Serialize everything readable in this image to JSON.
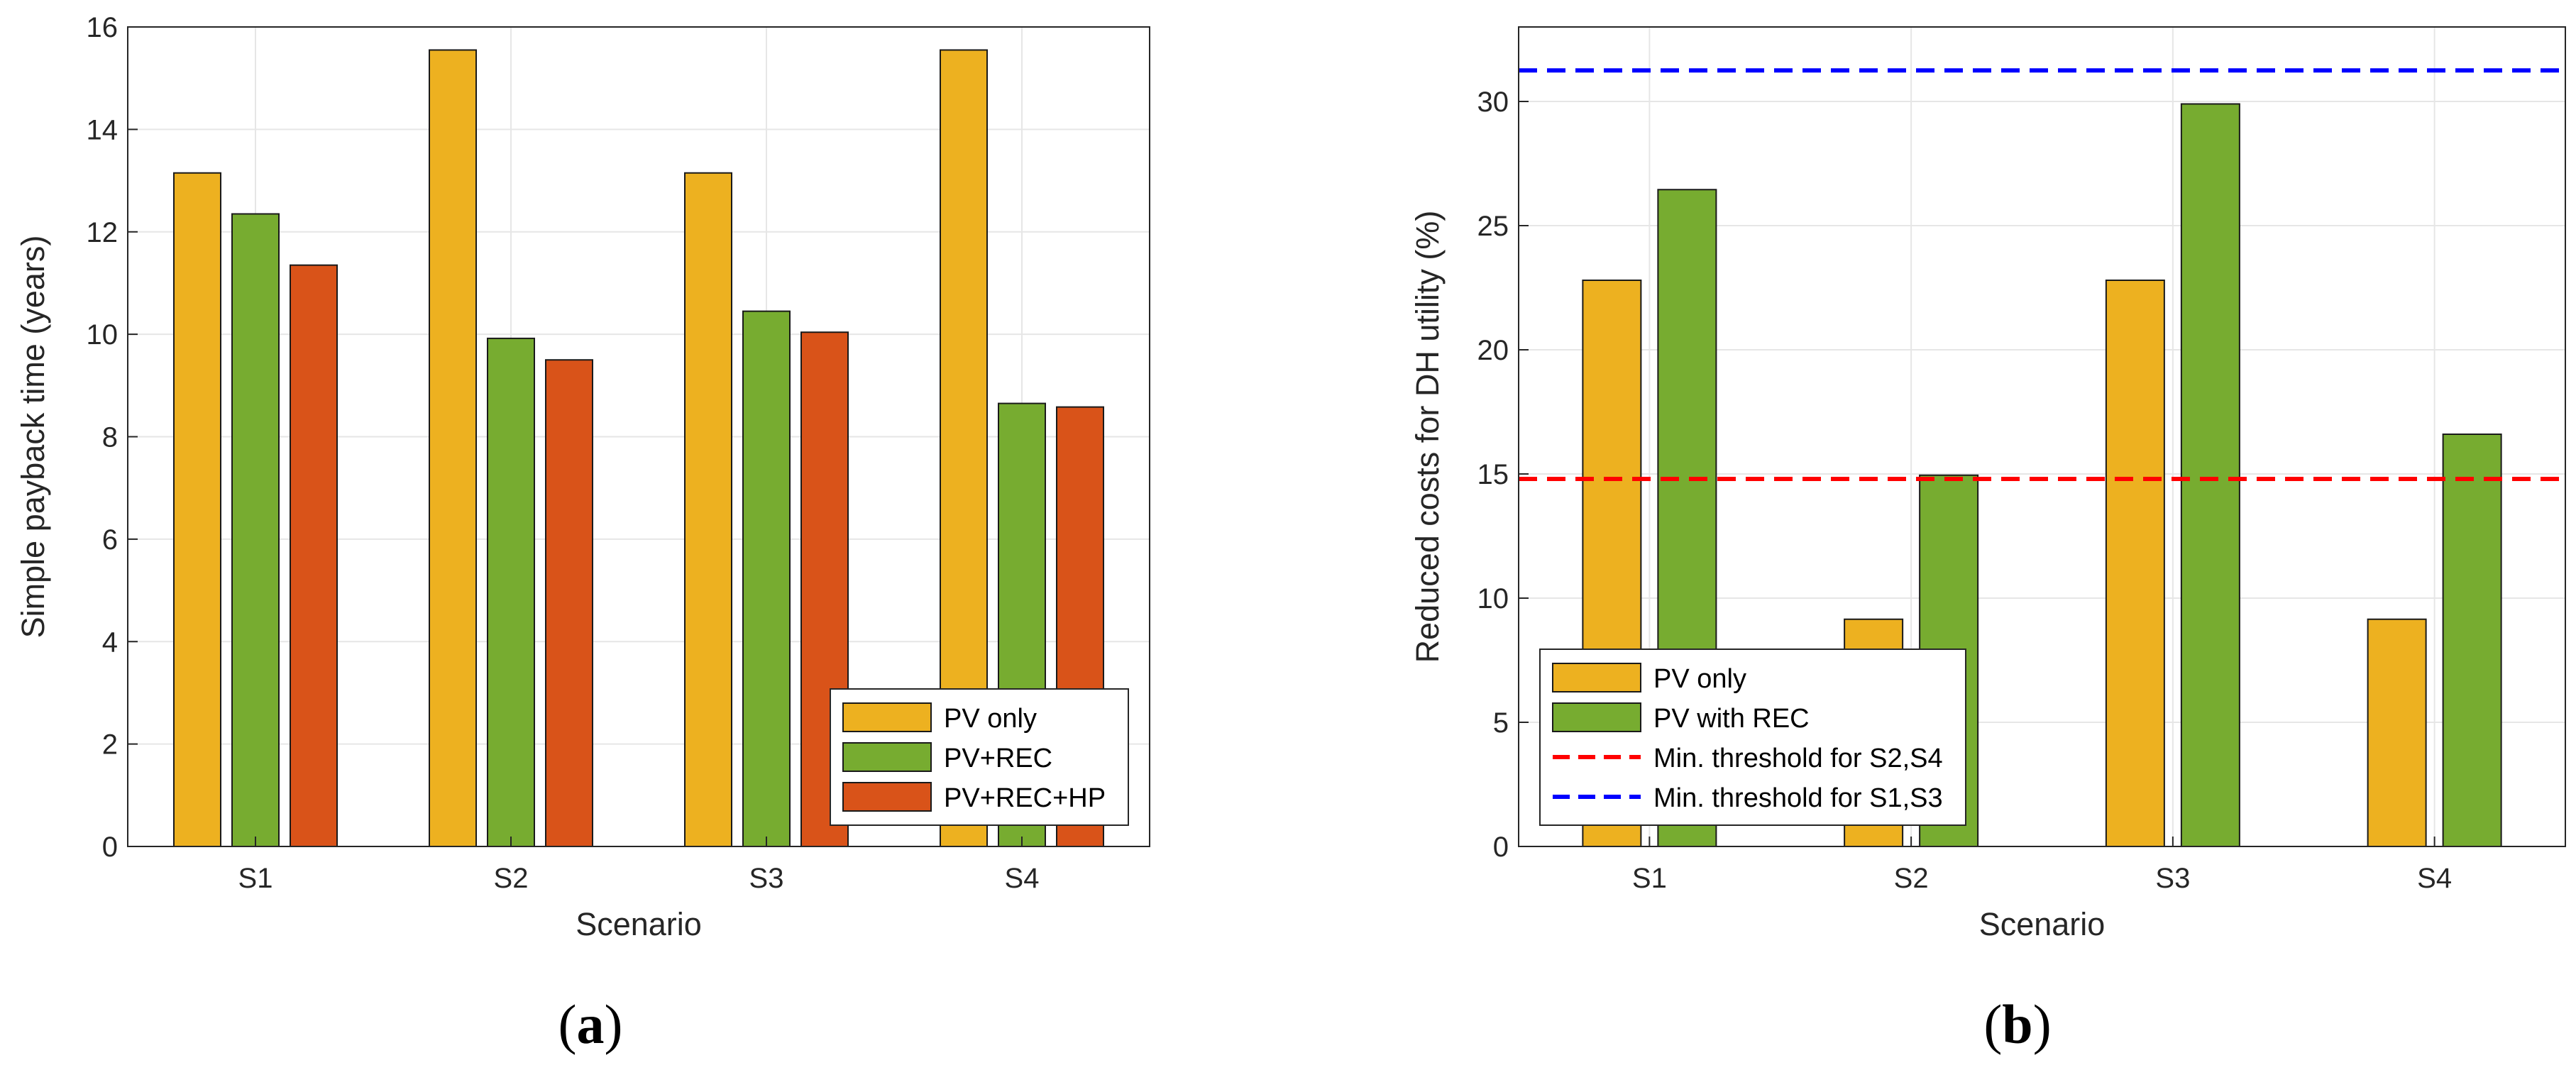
{
  "colors": {
    "pv_only": "#EDB120",
    "pv_rec": "#77AC30",
    "pv_rec_hp": "#D95319",
    "threshold_red": "#FF0000",
    "threshold_blue": "#0000FF",
    "grid": "#E6E6E6",
    "axis": "#262626"
  },
  "chart_data": [
    {
      "type": "bar",
      "panel_label": "a",
      "categories": [
        "S1",
        "S2",
        "S3",
        "S4"
      ],
      "series": [
        {
          "name": "PV only",
          "values": [
            13.15,
            15.55,
            13.15,
            15.55
          ]
        },
        {
          "name": "PV+REC",
          "values": [
            12.35,
            9.92,
            10.45,
            8.65
          ]
        },
        {
          "name": "PV+REC+HP",
          "values": [
            11.35,
            9.5,
            10.04,
            8.58
          ]
        }
      ],
      "xlabel": "Scenario",
      "ylabel": "Simple payback time (years)",
      "ylim": [
        0,
        16
      ],
      "yticks": [
        "0",
        "2",
        "4",
        "6",
        "8",
        "10",
        "12",
        "14",
        "16"
      ],
      "grid": true,
      "legend_position": "bottom-right"
    },
    {
      "type": "bar",
      "panel_label": "b",
      "categories": [
        "S1",
        "S2",
        "S3",
        "S4"
      ],
      "series": [
        {
          "name": "PV only",
          "values": [
            22.8,
            9.15,
            22.8,
            9.15
          ]
        },
        {
          "name": "PV with REC",
          "values": [
            26.45,
            14.95,
            29.9,
            16.6
          ]
        }
      ],
      "reference_lines": [
        {
          "name": "Min. threshold for S2,S4",
          "value": 14.8,
          "style": "dashed",
          "color": "#FF0000"
        },
        {
          "name": "Min. threshold for S1,S3",
          "value": 31.25,
          "style": "dashed",
          "color": "#0000FF"
        }
      ],
      "xlabel": "Scenario",
      "ylabel": "Reduced costs for DH utility (%)",
      "ylim": [
        0,
        33
      ],
      "yticks": [
        "0",
        "5",
        "10",
        "15",
        "20",
        "25",
        "30"
      ],
      "grid": true,
      "legend_position": "bottom-left"
    }
  ]
}
